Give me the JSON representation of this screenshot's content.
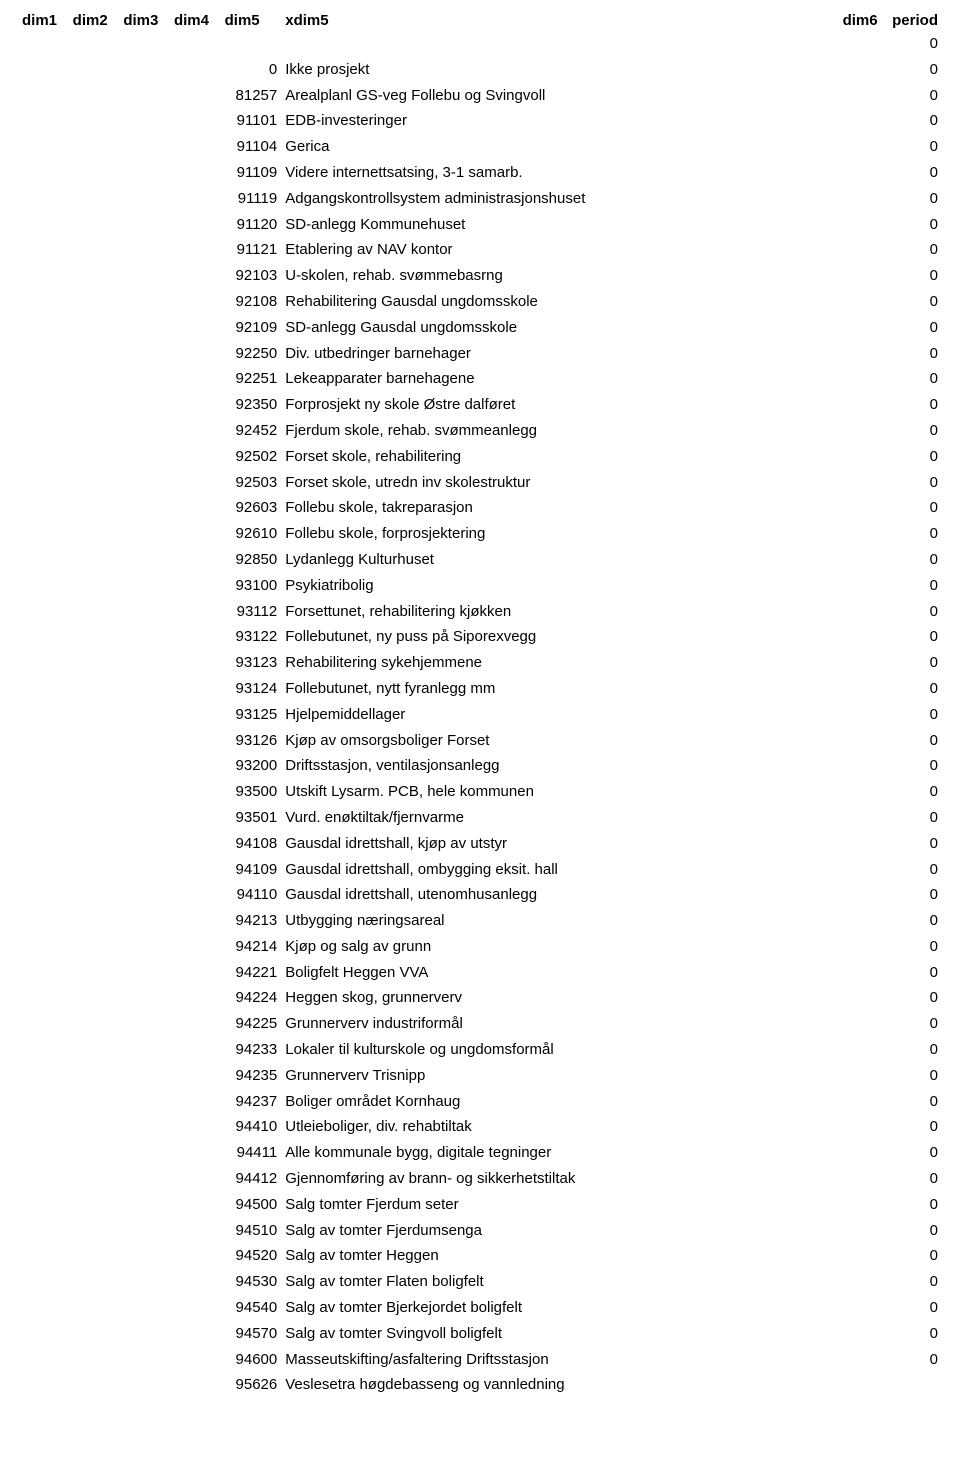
{
  "header": {
    "dim1": "dim1",
    "dim2": "dim2",
    "dim3": "dim3",
    "dim4": "dim4",
    "dim5": "dim5",
    "xdim5": "xdim5",
    "dim6": "dim6",
    "period": "period"
  },
  "first_period": "0",
  "rows": [
    {
      "dim5": "0",
      "xdim5": "Ikke prosjekt",
      "period": "0"
    },
    {
      "dim5": "81257",
      "xdim5": "Arealplanl GS-veg Follebu og Svingvoll",
      "period": "0"
    },
    {
      "dim5": "91101",
      "xdim5": "EDB-investeringer",
      "period": "0"
    },
    {
      "dim5": "91104",
      "xdim5": "Gerica",
      "period": "0"
    },
    {
      "dim5": "91109",
      "xdim5": "Videre internettsatsing, 3-1 samarb.",
      "period": "0"
    },
    {
      "dim5": "91119",
      "xdim5": "Adgangskontrollsystem administrasjonshuset",
      "period": "0"
    },
    {
      "dim5": "91120",
      "xdim5": "SD-anlegg Kommunehuset",
      "period": "0"
    },
    {
      "dim5": "91121",
      "xdim5": "Etablering av NAV kontor",
      "period": "0"
    },
    {
      "dim5": "92103",
      "xdim5": "U-skolen, rehab. svømmebasrng",
      "period": "0"
    },
    {
      "dim5": "92108",
      "xdim5": "Rehabilitering Gausdal ungdomsskole",
      "period": "0"
    },
    {
      "dim5": "92109",
      "xdim5": "SD-anlegg Gausdal ungdomsskole",
      "period": "0"
    },
    {
      "dim5": "92250",
      "xdim5": "Div. utbedringer barnehager",
      "period": "0"
    },
    {
      "dim5": "92251",
      "xdim5": "Lekeapparater barnehagene",
      "period": "0"
    },
    {
      "dim5": "92350",
      "xdim5": "Forprosjekt ny skole Østre dalføret",
      "period": "0"
    },
    {
      "dim5": "92452",
      "xdim5": "Fjerdum skole, rehab. svømmeanlegg",
      "period": "0"
    },
    {
      "dim5": "92502",
      "xdim5": "Forset skole, rehabilitering",
      "period": "0"
    },
    {
      "dim5": "92503",
      "xdim5": "Forset skole, utredn inv skolestruktur",
      "period": "0"
    },
    {
      "dim5": "92603",
      "xdim5": "Follebu skole, takreparasjon",
      "period": "0"
    },
    {
      "dim5": "92610",
      "xdim5": "Follebu skole, forprosjektering",
      "period": "0"
    },
    {
      "dim5": "92850",
      "xdim5": "Lydanlegg Kulturhuset",
      "period": "0"
    },
    {
      "dim5": "93100",
      "xdim5": "Psykiatribolig",
      "period": "0"
    },
    {
      "dim5": "93112",
      "xdim5": "Forsettunet, rehabilitering kjøkken",
      "period": "0"
    },
    {
      "dim5": "93122",
      "xdim5": "Follebutunet, ny puss på Siporexvegg",
      "period": "0"
    },
    {
      "dim5": "93123",
      "xdim5": "Rehabilitering sykehjemmene",
      "period": "0"
    },
    {
      "dim5": "93124",
      "xdim5": "Follebutunet, nytt fyranlegg mm",
      "period": "0"
    },
    {
      "dim5": "93125",
      "xdim5": "Hjelpemiddellager",
      "period": "0"
    },
    {
      "dim5": "93126",
      "xdim5": "Kjøp av omsorgsboliger Forset",
      "period": "0"
    },
    {
      "dim5": "93200",
      "xdim5": "Driftsstasjon, ventilasjonsanlegg",
      "period": "0"
    },
    {
      "dim5": "93500",
      "xdim5": "Utskift Lysarm. PCB, hele kommunen",
      "period": "0"
    },
    {
      "dim5": "93501",
      "xdim5": "Vurd. enøktiltak/fjernvarme",
      "period": "0"
    },
    {
      "dim5": "94108",
      "xdim5": "Gausdal idrettshall, kjøp av utstyr",
      "period": "0"
    },
    {
      "dim5": "94109",
      "xdim5": "Gausdal idrettshall, ombygging eksit. hall",
      "period": "0"
    },
    {
      "dim5": "94110",
      "xdim5": "Gausdal idrettshall, utenomhusanlegg",
      "period": "0"
    },
    {
      "dim5": "94213",
      "xdim5": "Utbygging næringsareal",
      "period": "0"
    },
    {
      "dim5": "94214",
      "xdim5": "Kjøp og salg av grunn",
      "period": "0"
    },
    {
      "dim5": "94221",
      "xdim5": "Boligfelt Heggen VVA",
      "period": "0"
    },
    {
      "dim5": "94224",
      "xdim5": "Heggen skog, grunnerverv",
      "period": "0"
    },
    {
      "dim5": "94225",
      "xdim5": "Grunnerverv industriformål",
      "period": "0"
    },
    {
      "dim5": "94233",
      "xdim5": "Lokaler til kulturskole og ungdomsformål",
      "period": "0"
    },
    {
      "dim5": "94235",
      "xdim5": "Grunnerverv Trisnipp",
      "period": "0"
    },
    {
      "dim5": "94237",
      "xdim5": "Boliger området Kornhaug",
      "period": "0"
    },
    {
      "dim5": "94410",
      "xdim5": "Utleieboliger, div. rehabtiltak",
      "period": "0"
    },
    {
      "dim5": "94411",
      "xdim5": "Alle kommunale bygg, digitale tegninger",
      "period": "0"
    },
    {
      "dim5": "94412",
      "xdim5": "Gjennomføring av brann- og sikkerhetstiltak",
      "period": "0"
    },
    {
      "dim5": "94500",
      "xdim5": "Salg tomter Fjerdum seter",
      "period": "0"
    },
    {
      "dim5": "94510",
      "xdim5": "Salg av tomter Fjerdumsenga",
      "period": "0"
    },
    {
      "dim5": "94520",
      "xdim5": "Salg av tomter Heggen",
      "period": "0"
    },
    {
      "dim5": "94530",
      "xdim5": "Salg av tomter Flaten boligfelt",
      "period": "0"
    },
    {
      "dim5": "94540",
      "xdim5": "Salg av tomter Bjerkejordet boligfelt",
      "period": "0"
    },
    {
      "dim5": "94570",
      "xdim5": "Salg av tomter Svingvoll boligfelt",
      "period": "0"
    },
    {
      "dim5": "94600",
      "xdim5": "Masseutskifting/asfaltering  Driftsstasjon",
      "period": "0"
    },
    {
      "dim5": "95626",
      "xdim5": "Veslesetra høgdebasseng og vannledning",
      "period": ""
    }
  ]
}
